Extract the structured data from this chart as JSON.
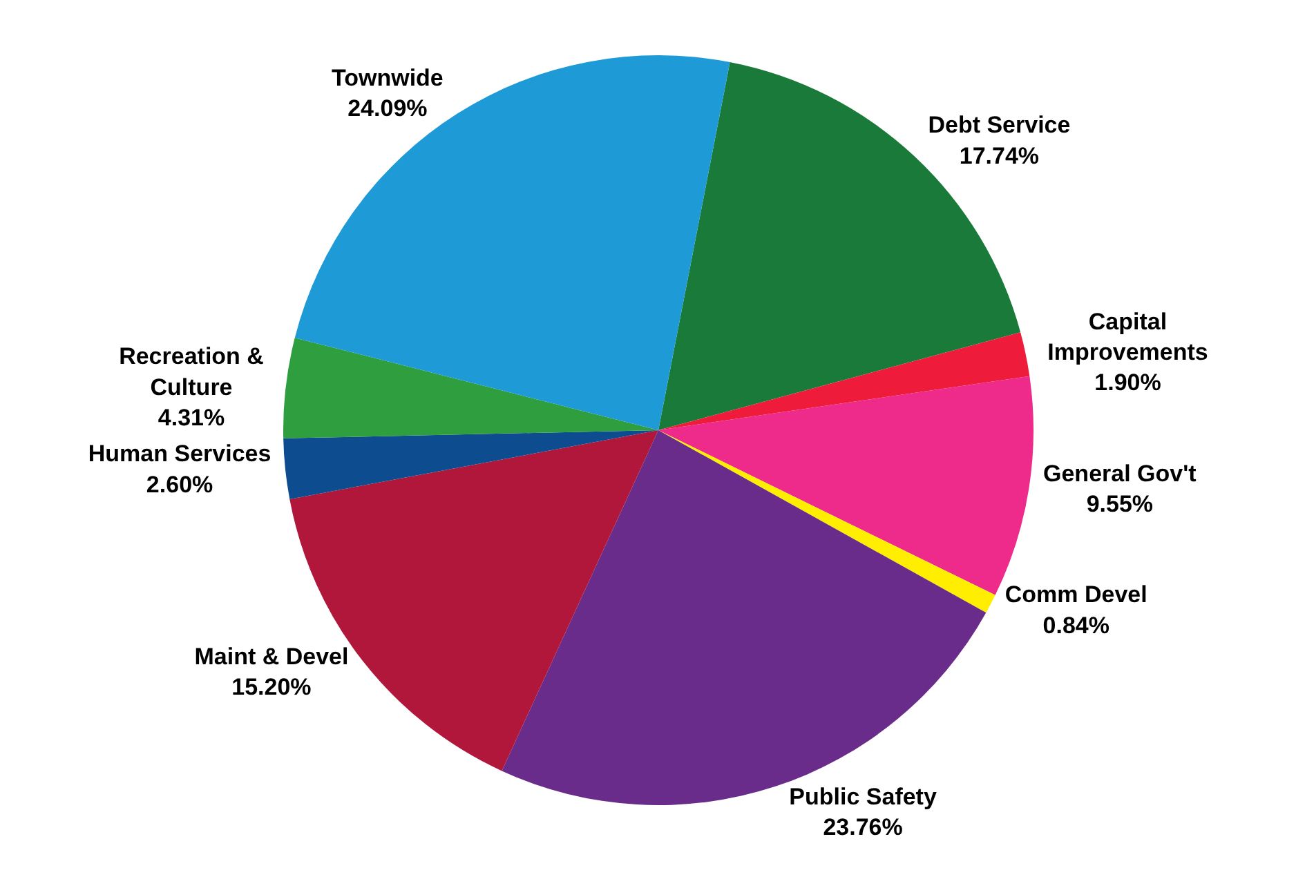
{
  "chart_data": {
    "type": "pie",
    "categories": [
      "Debt Service",
      "Capital\nImprovements",
      "General Gov't",
      "Comm Devel",
      "Public Safety",
      "Maint & Devel",
      "Human Services",
      "Recreation &\nCulture",
      "Townwide"
    ],
    "values": [
      17.74,
      1.9,
      9.55,
      0.84,
      23.76,
      15.2,
      2.6,
      4.31,
      24.09
    ],
    "value_labels": [
      "17.74%",
      "1.90%",
      "9.55%",
      "0.84%",
      "23.76%",
      "15.20%",
      "2.60%",
      "4.31%",
      "24.09%"
    ],
    "colors": [
      "#1a7a3a",
      "#ee1c3a",
      "#ee2a8a",
      "#ffee00",
      "#6a2c8a",
      "#b0173a",
      "#0d4d8f",
      "#2e9e3e",
      "#1e9ad6"
    ],
    "legend": false
  }
}
